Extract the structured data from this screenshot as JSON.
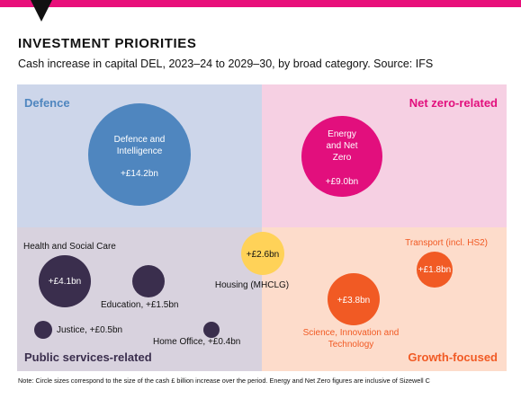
{
  "header": {
    "title": "INVESTMENT PRIORITIES",
    "subtitle": "Cash increase in capital DEL, 2023–24 to 2029–30, by broad category. Source: IFS"
  },
  "footer": {
    "note": "Note: Circle sizes correspond to the size of the cash £ billion increase over the period. Energy and Net Zero figures are inclusive of Sizewell C"
  },
  "colors": {
    "accent_bar": "#e8107a",
    "defence_bg": "#cdd6ea",
    "netzero_bg": "#f6d0e3",
    "public_bg": "#d8d2de",
    "growth_bg": "#fddccb",
    "defence": "#4f86bf",
    "netzero": "#e20f7d",
    "public": "#3a2e4d",
    "growth": "#f15a24",
    "housing": "#ffd258"
  },
  "chart_data": {
    "type": "bubble",
    "unit": "£bn",
    "quadrants": [
      {
        "name": "Defence",
        "color": "#4f86bf"
      },
      {
        "name": "Net zero-related",
        "color": "#e20f7d"
      },
      {
        "name": "Public services-related",
        "color": "#3a2e4d"
      },
      {
        "name": "Growth-focused",
        "color": "#f15a24"
      }
    ],
    "items": [
      {
        "name": "Defence and Intelligence",
        "value": 14.2,
        "value_label": "+£14.2bn",
        "category": "Defence"
      },
      {
        "name": "Energy and Net Zero",
        "value": 9.0,
        "value_label": "+£9.0bn",
        "category": "Net zero-related"
      },
      {
        "name": "Housing (MHCLG)",
        "value": 2.6,
        "value_label": "+£2.6bn",
        "category": "Public services-related / Growth-focused"
      },
      {
        "name": "Health and Social Care",
        "value": 4.1,
        "value_label": "+£4.1bn",
        "category": "Public services-related"
      },
      {
        "name": "Education",
        "value": 1.5,
        "value_label": "Education, +£1.5bn",
        "category": "Public services-related"
      },
      {
        "name": "Justice",
        "value": 0.5,
        "value_label": "Justice, +£0.5bn",
        "category": "Public services-related"
      },
      {
        "name": "Home Office",
        "value": 0.4,
        "value_label": "Home Office, +£0.4bn",
        "category": "Public services-related"
      },
      {
        "name": "Transport (incl. HS2)",
        "value": 1.8,
        "value_label": "+£1.8bn",
        "category": "Growth-focused"
      },
      {
        "name": "Science, Innovation and Technology",
        "value": 3.8,
        "value_label": "+£3.8bn",
        "category": "Growth-focused"
      }
    ]
  }
}
